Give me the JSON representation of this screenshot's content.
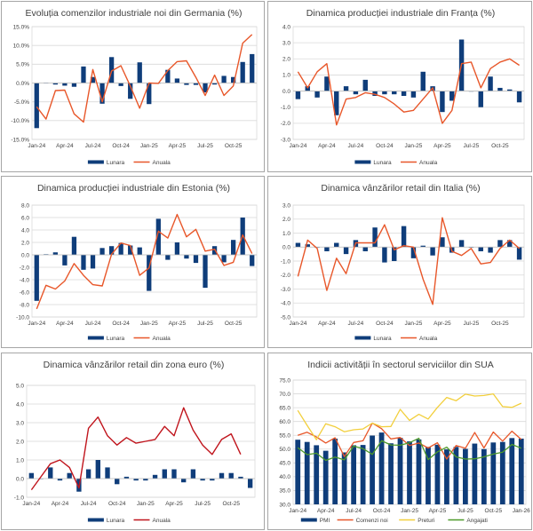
{
  "colors": {
    "bar": "#0f3d7a",
    "line_orange": "#e8572a",
    "line_red": "#c0141c",
    "line_yellow": "#f2cf3c",
    "line_green": "#4e9a2a",
    "grid": "#d9d9d9"
  },
  "chart_data": [
    {
      "id": "germany",
      "type": "bar+line",
      "title": "Evoluția comenzilor industriale noi din Germania (%)",
      "ylim": [
        -15,
        15
      ],
      "yticks": [
        "15.0%",
        "10.0%",
        "5.0%",
        "0.0%",
        "-5.0%",
        "-10.0%",
        "-15.0%"
      ],
      "ytick_values": [
        15,
        10,
        5,
        0,
        -5,
        -10,
        -15
      ],
      "xtick_labels": [
        "Jan-24",
        "Apr-24",
        "Jul-24",
        "Oct-24",
        "Jan-25",
        "Apr-25",
        "Jul-25",
        "Oct-25"
      ],
      "months": [
        "Jan-24",
        "Feb-24",
        "Mar-24",
        "Apr-24",
        "May-24",
        "Jun-24",
        "Jul-24",
        "Aug-24",
        "Sep-24",
        "Oct-24",
        "Nov-24",
        "Dec-24",
        "Jan-25",
        "Feb-25",
        "Mar-25",
        "Apr-25",
        "May-25",
        "Jun-25",
        "Jul-25",
        "Aug-25",
        "Sep-25",
        "Oct-25",
        "Nov-25",
        "Dec-25"
      ],
      "series": [
        {
          "name": "Lunara",
          "kind": "bar",
          "color": "#0f3d7a",
          "values": [
            -12.0,
            0.1,
            -0.4,
            -0.7,
            -1.0,
            4.4,
            1.6,
            -5.5,
            6.9,
            -0.8,
            -4.2,
            5.5,
            -5.6,
            0.0,
            3.5,
            1.2,
            -0.5,
            -0.5,
            -2.5,
            -0.4,
            1.9,
            1.6,
            5.6,
            7.7
          ]
        },
        {
          "name": "Anuala",
          "kind": "line",
          "color": "#e8572a",
          "values": [
            -6.3,
            -9.6,
            -2.0,
            -1.9,
            -8.2,
            -10.4,
            3.6,
            -5.0,
            3.2,
            4.6,
            -0.8,
            -6.7,
            0.0,
            -0.1,
            3.3,
            5.7,
            5.9,
            1.5,
            -3.3,
            2.1,
            -3.3,
            -0.8,
            10.6,
            12.9
          ]
        }
      ],
      "legend": [
        "Lunara",
        "Anuala"
      ],
      "legend_position": "bottom"
    },
    {
      "id": "france",
      "type": "bar+line",
      "title": "Dinamica producției industriale din Franța (%)",
      "ylim": [
        -3,
        4
      ],
      "yticks": [
        "4.0",
        "3.0",
        "2.0",
        "1.0",
        "0.0",
        "-1.0",
        "-2.0",
        "-3.0"
      ],
      "ytick_values": [
        4,
        3,
        2,
        1,
        0,
        -1,
        -2,
        -3
      ],
      "xtick_labels": [
        "Jan-24",
        "Apr-24",
        "Jul-24",
        "Oct-24",
        "Jan-25",
        "Apr-25",
        "Jul-25",
        "Oct-25"
      ],
      "months": [
        "Jan-24",
        "Feb-24",
        "Mar-24",
        "Apr-24",
        "May-24",
        "Jun-24",
        "Jul-24",
        "Aug-24",
        "Sep-24",
        "Oct-24",
        "Nov-24",
        "Dec-24",
        "Jan-25",
        "Feb-25",
        "Mar-25",
        "Apr-25",
        "May-25",
        "Jun-25",
        "Jul-25",
        "Aug-25",
        "Sep-25",
        "Oct-25",
        "Nov-25",
        "Dec-25"
      ],
      "series": [
        {
          "name": "Lunara",
          "kind": "bar",
          "color": "#0f3d7a",
          "values": [
            -0.5,
            0.3,
            -0.4,
            0.9,
            -1.5,
            0.3,
            -0.2,
            0.7,
            -0.3,
            -0.2,
            -0.2,
            -0.3,
            -0.4,
            1.2,
            0.3,
            -1.3,
            -0.6,
            3.2,
            0.0,
            -1.0,
            0.9,
            0.2,
            0.1,
            -0.7
          ]
        },
        {
          "name": "Anuala",
          "kind": "line",
          "color": "#e8572a",
          "values": [
            1.2,
            0.2,
            1.2,
            1.7,
            -2.1,
            -0.5,
            -0.4,
            -0.1,
            -0.2,
            -0.4,
            -0.8,
            -1.3,
            -1.2,
            -0.5,
            0.2,
            -2.0,
            -1.2,
            1.7,
            1.8,
            0.2,
            1.4,
            1.8,
            2.0,
            1.6
          ]
        }
      ],
      "legend": [
        "Lunara",
        "Anuala"
      ],
      "legend_position": "bottom"
    },
    {
      "id": "estonia",
      "type": "bar+line",
      "title": "Dinamica producției industriale din Estonia (%)",
      "ylim": [
        -10,
        8
      ],
      "yticks": [
        "8.0",
        "6.0",
        "4.0",
        "2.0",
        "0.0",
        "-2.0",
        "-4.0",
        "-6.0",
        "-8.0",
        "-10.0"
      ],
      "ytick_values": [
        8,
        6,
        4,
        2,
        0,
        -2,
        -4,
        -6,
        -8,
        -10
      ],
      "xtick_labels": [
        "Jan-24",
        "Apr-24",
        "Jul-24",
        "Oct-24",
        "Jan-25",
        "Apr-25",
        "Jul-25",
        "Oct-25"
      ],
      "months": [
        "Jan-24",
        "Feb-24",
        "Mar-24",
        "Apr-24",
        "May-24",
        "Jun-24",
        "Jul-24",
        "Aug-24",
        "Sep-24",
        "Oct-24",
        "Nov-24",
        "Dec-24",
        "Jan-25",
        "Feb-25",
        "Mar-25",
        "Apr-25",
        "May-25",
        "Jun-25",
        "Jul-25",
        "Aug-25",
        "Sep-25",
        "Oct-25",
        "Nov-25",
        "Dec-25"
      ],
      "series": [
        {
          "name": "Lunara",
          "kind": "bar",
          "color": "#0f3d7a",
          "values": [
            -7.4,
            0.1,
            0.4,
            -1.7,
            2.9,
            -2.4,
            -2.2,
            1.1,
            1.4,
            1.9,
            1.5,
            1.2,
            -5.8,
            5.8,
            -0.8,
            2.0,
            -0.6,
            -1.3,
            -5.3,
            1.4,
            -1.2,
            2.4,
            6.0,
            -1.8
          ]
        },
        {
          "name": "Anuala",
          "kind": "line",
          "color": "#e8572a",
          "values": [
            -8.7,
            -4.9,
            -5.5,
            -4.2,
            -1.4,
            -3.3,
            -4.8,
            -5.0,
            0.1,
            1.9,
            1.5,
            -3.3,
            -2.1,
            3.8,
            2.7,
            6.5,
            2.9,
            4.1,
            0.6,
            0.9,
            -1.7,
            -1.2,
            3.2,
            0.2
          ]
        }
      ],
      "legend": [
        "Lunara",
        "Anuala"
      ],
      "legend_position": "bottom"
    },
    {
      "id": "italy",
      "type": "bar+line",
      "title": "Dinamica vânzărilor retail din Italia (%)",
      "ylim": [
        -5,
        3
      ],
      "yticks": [
        "3.0",
        "2.0",
        "1.0",
        "0.0",
        "-1.0",
        "-2.0",
        "-3.0",
        "-4.0",
        "-5.0"
      ],
      "ytick_values": [
        3,
        2,
        1,
        0,
        -1,
        -2,
        -3,
        -4,
        -5
      ],
      "xtick_labels": [
        "Jan-24",
        "Apr-24",
        "Jul-24",
        "Oct-24",
        "Jan-25",
        "Apr-25",
        "Jul-25",
        "Oct-25"
      ],
      "months": [
        "Jan-24",
        "Feb-24",
        "Mar-24",
        "Apr-24",
        "May-24",
        "Jun-24",
        "Jul-24",
        "Aug-24",
        "Sep-24",
        "Oct-24",
        "Nov-24",
        "Dec-24",
        "Jan-25",
        "Feb-25",
        "Mar-25",
        "Apr-25",
        "May-25",
        "Jun-25",
        "Jul-25",
        "Aug-25",
        "Sep-25",
        "Oct-25",
        "Nov-25",
        "Dec-25"
      ],
      "series": [
        {
          "name": "Lunara",
          "kind": "bar",
          "color": "#0f3d7a",
          "values": [
            0.3,
            0.2,
            0.0,
            -0.3,
            0.3,
            -0.5,
            0.5,
            -0.3,
            1.4,
            -1.1,
            -1.0,
            1.5,
            -0.8,
            0.1,
            -0.6,
            0.7,
            -0.4,
            0.5,
            0.0,
            -0.3,
            -0.4,
            0.5,
            0.5,
            -0.9
          ]
        },
        {
          "name": "Anuala",
          "kind": "line",
          "color": "#e8572a",
          "values": [
            -2.1,
            0.5,
            -0.1,
            -3.1,
            -0.8,
            -1.9,
            0.3,
            0.3,
            0.3,
            1.6,
            -0.2,
            0.1,
            0.0,
            -2.3,
            -4.1,
            2.1,
            -0.3,
            -0.6,
            -0.1,
            -1.2,
            -1.1,
            -0.1,
            0.5,
            -0.1
          ]
        }
      ],
      "legend": [
        "Lunara",
        "Anuala"
      ],
      "legend_position": "bottom"
    },
    {
      "id": "eurozone",
      "type": "bar+line",
      "title": "Dinamica vânzărilor retail din zona euro (%)",
      "ylim": [
        -1,
        5
      ],
      "yticks": [
        "5.0",
        "4.0",
        "3.0",
        "2.0",
        "1.0",
        "0.0",
        "-1.0"
      ],
      "ytick_values": [
        5,
        4,
        3,
        2,
        1,
        0,
        -1
      ],
      "xtick_labels": [
        "Jan-24",
        "Apr-24",
        "Jul-24",
        "Oct-24",
        "Jan-25",
        "Apr-25",
        "Jul-25",
        "Oct-25"
      ],
      "months": [
        "Jan-24",
        "Feb-24",
        "Mar-24",
        "Apr-24",
        "May-24",
        "Jun-24",
        "Jul-24",
        "Aug-24",
        "Sep-24",
        "Oct-24",
        "Nov-24",
        "Dec-24",
        "Jan-25",
        "Feb-25",
        "Mar-25",
        "Apr-25",
        "May-25",
        "Jun-25",
        "Jul-25",
        "Aug-25",
        "Sep-25",
        "Oct-25",
        "Nov-25",
        "Dec-25"
      ],
      "series": [
        {
          "name": "Lunara",
          "kind": "bar",
          "color": "#0f3d7a",
          "values": [
            0.3,
            0.0,
            0.6,
            -0.1,
            0.3,
            -0.7,
            0.5,
            1.0,
            0.6,
            -0.3,
            0.1,
            -0.1,
            -0.1,
            0.2,
            0.5,
            0.5,
            -0.2,
            0.5,
            -0.1,
            -0.1,
            0.3,
            0.3,
            0.1,
            -0.5
          ]
        },
        {
          "name": "Anuala",
          "kind": "line",
          "color": "#c0141c",
          "values": [
            -0.6,
            0.1,
            0.8,
            1.0,
            0.6,
            -0.5,
            2.7,
            3.3,
            2.3,
            1.8,
            2.2,
            1.9,
            2.0,
            2.1,
            2.8,
            2.3,
            3.8,
            2.6,
            1.8,
            1.3,
            2.1,
            2.4,
            1.3,
            null
          ]
        }
      ],
      "legend": [
        "Lunara",
        "Anuala"
      ],
      "legend_position": "bottom"
    },
    {
      "id": "usa",
      "type": "bar+line",
      "title": "Indicii activității în sectorul serviciilor din SUA",
      "ylim": [
        30,
        75
      ],
      "yticks": [
        "75.0",
        "70.0",
        "65.0",
        "60.0",
        "55.0",
        "50.0",
        "45.0",
        "40.0",
        "35.0",
        "30.0"
      ],
      "ytick_values": [
        75,
        70,
        65,
        60,
        55,
        50,
        45,
        40,
        35,
        30
      ],
      "xtick_labels": [
        "Jan-24",
        "Apr-24",
        "Jul-24",
        "Oct-24",
        "Jan-25",
        "Apr-25",
        "Jul-25",
        "Oct-25",
        "Jan-26"
      ],
      "months": [
        "Jan-24",
        "Feb-24",
        "Mar-24",
        "Apr-24",
        "May-24",
        "Jun-24",
        "Jul-24",
        "Aug-24",
        "Sep-24",
        "Oct-24",
        "Nov-24",
        "Dec-24",
        "Jan-25",
        "Feb-25",
        "Mar-25",
        "Apr-25",
        "May-25",
        "Jun-25",
        "Jul-25",
        "Aug-25",
        "Sep-25",
        "Oct-25",
        "Nov-25",
        "Dec-25",
        "Jan-26"
      ],
      "series": [
        {
          "name": "PMI",
          "kind": "bar",
          "color": "#0f3d7a",
          "values": [
            53.4,
            52.6,
            51.4,
            49.4,
            53.8,
            48.8,
            51.4,
            51.5,
            54.9,
            56.0,
            52.1,
            54.1,
            52.8,
            53.5,
            50.8,
            51.6,
            49.9,
            50.8,
            50.1,
            52.0,
            50.0,
            52.4,
            52.6,
            54.0,
            53.8
          ]
        },
        {
          "name": "Comenzi noi",
          "kind": "line",
          "color": "#e8572a",
          "values": [
            55.0,
            56.1,
            54.4,
            52.2,
            54.1,
            47.3,
            52.4,
            53.0,
            59.4,
            57.4,
            53.7,
            54.2,
            51.3,
            52.2,
            50.4,
            52.3,
            46.4,
            51.3,
            50.3,
            56.0,
            50.4,
            56.2,
            52.9,
            56.5,
            53.5
          ]
        },
        {
          "name": "Preturi",
          "kind": "line",
          "color": "#f2cf3c",
          "values": [
            64.0,
            58.6,
            53.4,
            59.2,
            58.1,
            56.3,
            57.0,
            57.3,
            59.4,
            58.1,
            58.2,
            64.4,
            60.4,
            62.6,
            60.9,
            65.1,
            68.7,
            67.5,
            69.9,
            69.2,
            69.4,
            70.0,
            65.4,
            65.1,
            66.6
          ]
        },
        {
          "name": "Angajati",
          "kind": "line",
          "color": "#4e9a2a",
          "values": [
            50.5,
            48.0,
            48.5,
            45.9,
            47.1,
            46.1,
            51.1,
            50.2,
            48.1,
            53.0,
            51.5,
            51.4,
            52.3,
            53.9,
            46.2,
            49.0,
            50.7,
            47.2,
            46.4,
            46.5,
            47.2,
            48.2,
            48.9,
            51.7,
            50.3
          ]
        }
      ],
      "legend": [
        "PMI",
        "Comenzi noi",
        "Preturi",
        "Angajati"
      ],
      "legend_position": "bottom"
    }
  ]
}
